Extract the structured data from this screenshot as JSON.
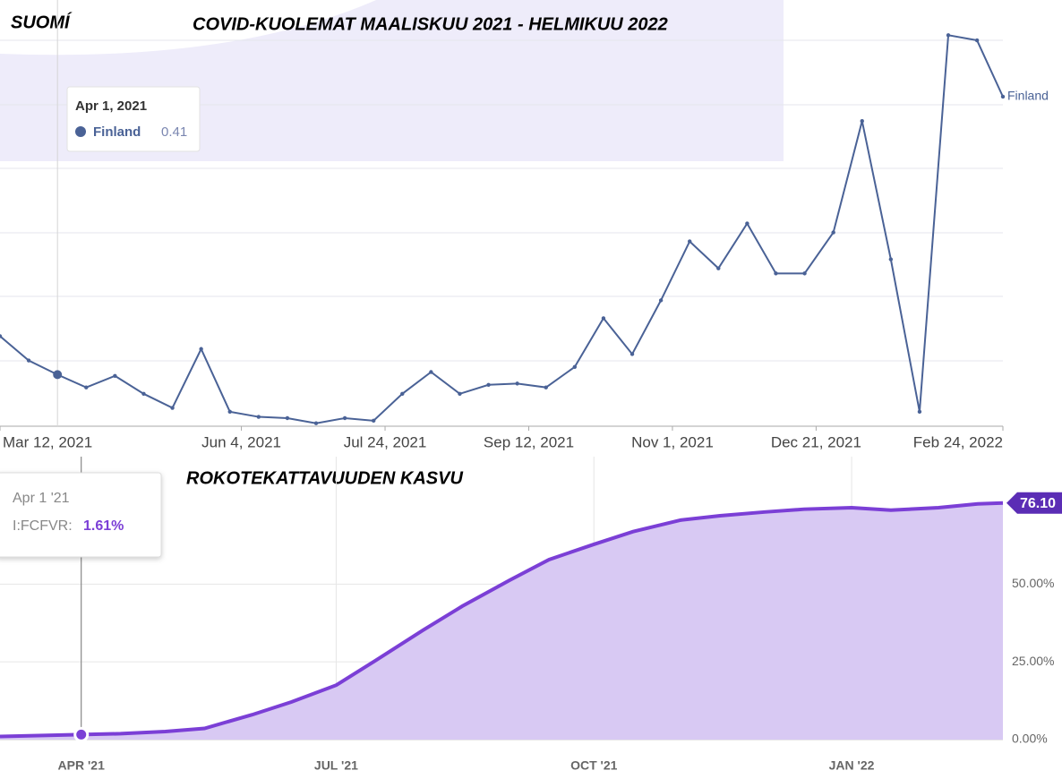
{
  "chart_data": [
    {
      "type": "line",
      "title": "COVID-KUOLEMAT MAALISKUU 2021 - HELMIKUU 2022",
      "subtitle": "SUOMÍ",
      "x": [
        "2021-03-12",
        "2021-03-22",
        "2021-04-01",
        "2021-04-11",
        "2021-04-21",
        "2021-05-01",
        "2021-05-11",
        "2021-05-21",
        "2021-05-31",
        "2021-06-10",
        "2021-06-20",
        "2021-06-30",
        "2021-07-10",
        "2021-07-20",
        "2021-07-30",
        "2021-08-09",
        "2021-08-19",
        "2021-08-29",
        "2021-09-08",
        "2021-09-18",
        "2021-09-28",
        "2021-10-08",
        "2021-10-18",
        "2021-10-28",
        "2021-11-07",
        "2021-11-17",
        "2021-11-27",
        "2021-12-07",
        "2021-12-17",
        "2021-12-27",
        "2022-01-06",
        "2022-01-16",
        "2022-01-26",
        "2022-02-05",
        "2022-02-15",
        "2022-02-24"
      ],
      "series": [
        {
          "name": "Finland",
          "color": "#4a6296",
          "values": [
            0.71,
            0.52,
            0.41,
            0.31,
            0.4,
            0.26,
            0.15,
            0.61,
            0.12,
            0.08,
            0.07,
            0.03,
            0.07,
            0.05,
            0.26,
            0.43,
            0.26,
            0.33,
            0.34,
            0.31,
            0.47,
            0.85,
            0.57,
            0.99,
            1.45,
            1.24,
            1.59,
            1.2,
            1.2,
            1.52,
            2.39,
            1.31,
            0.12,
            3.06,
            3.02,
            2.58
          ]
        }
      ],
      "xlim": [
        "2021-03-12",
        "2022-02-24"
      ],
      "xticks": [
        {
          "value": "2021-03-12",
          "label": "Mar 12, 2021"
        },
        {
          "value": "2021-06-04",
          "label": "Jun 4, 2021"
        },
        {
          "value": "2021-07-24",
          "label": "Jul 24, 2021"
        },
        {
          "value": "2021-09-12",
          "label": "Sep 12, 2021"
        },
        {
          "value": "2021-11-01",
          "label": "Nov 1, 2021"
        },
        {
          "value": "2021-12-21",
          "label": "Dec 21, 2021"
        },
        {
          "value": "2022-02-24",
          "label": "Feb 24, 2022"
        }
      ],
      "ylim": [
        0,
        3.3
      ],
      "tooltip": {
        "title": "Apr 1, 2021"
      }
    },
    {
      "type": "area",
      "title": "ROKOTEKATTAVUUDEN KASVU",
      "x": [
        "2021-03-03",
        "2021-04-01",
        "2021-04-15",
        "2021-05-01",
        "2021-05-15",
        "2021-06-01",
        "2021-06-15",
        "2021-07-01",
        "2021-07-15",
        "2021-08-01",
        "2021-08-15",
        "2021-09-01",
        "2021-09-15",
        "2021-10-01",
        "2021-10-15",
        "2021-11-01",
        "2021-11-15",
        "2021-12-01",
        "2021-12-15",
        "2022-01-01",
        "2022-01-15",
        "2022-02-01",
        "2022-02-15",
        "2022-02-24"
      ],
      "series": [
        {
          "color": "#7b3fd6",
          "values": [
            1.0,
            1.61,
            1.9,
            2.6,
            3.6,
            8.0,
            12.1,
            17.5,
            25.4,
            35.2,
            42.9,
            51.3,
            57.9,
            62.8,
            66.9,
            70.6,
            72.0,
            73.2,
            74.1,
            74.6,
            73.8,
            74.6,
            75.8,
            76.1
          ],
          "value_labels": [
            null,
            "1.61%",
            null,
            null,
            null,
            null,
            null,
            null,
            null,
            null,
            null,
            null,
            null,
            null,
            null,
            null,
            null,
            null,
            null,
            null,
            null,
            null,
            null,
            "76.10"
          ]
        }
      ],
      "xlim": [
        "2021-03-03",
        "2022-02-24"
      ],
      "xticks": [
        {
          "value": "2021-04-01",
          "label": "APR '21"
        },
        {
          "value": "2021-07-01",
          "label": "JUL '21"
        },
        {
          "value": "2021-10-01",
          "label": "OCT '21"
        },
        {
          "value": "2022-01-01",
          "label": "JAN '22"
        }
      ],
      "ylim": [
        0,
        91
      ],
      "yticks": [
        {
          "value": 0,
          "label": "0.00%"
        },
        {
          "value": 25,
          "label": "25.00%"
        },
        {
          "value": 50,
          "label": "50.00%"
        }
      ],
      "grid": true,
      "tooltip": {
        "title": "Apr 1 '21",
        "series_label": "I:FCFVR:"
      }
    }
  ]
}
